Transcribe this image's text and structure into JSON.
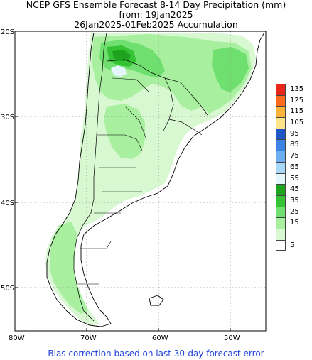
{
  "title": {
    "line1": "NCEP GFS Ensemble Forecast 8-14 Day Precipitation (mm)",
    "line2": "from: 19Jan2025",
    "line3": "26Jan2025-01Feb2025 Accumulation"
  },
  "axes": {
    "lat_labels": [
      "20S",
      "30S",
      "40S",
      "50S"
    ],
    "lon_labels": [
      "80W",
      "70W",
      "60W",
      "50W"
    ]
  },
  "legend": {
    "entries": [
      {
        "label": "135",
        "color": "#e8261a"
      },
      {
        "label": "125",
        "color": "#fb6a1c"
      },
      {
        "label": "115",
        "color": "#fcb43a"
      },
      {
        "label": "105",
        "color": "#fde48a"
      },
      {
        "label": "95",
        "color": "#1f56c6"
      },
      {
        "label": "85",
        "color": "#3b84e4"
      },
      {
        "label": "75",
        "color": "#6caef0"
      },
      {
        "label": "65",
        "color": "#a9d8f6"
      },
      {
        "label": "55",
        "color": "#e2f6fb"
      },
      {
        "label": "45",
        "color": "#1da31d"
      },
      {
        "label": "35",
        "color": "#35c235"
      },
      {
        "label": "25",
        "color": "#6fe06f"
      },
      {
        "label": "15",
        "color": "#a8f0a0"
      },
      {
        "label": "",
        "color": "#d8f8d2"
      },
      {
        "label": "5",
        "color": "#ffffff"
      }
    ]
  },
  "footer": "Bias correction based on last 30-day forecast error"
}
